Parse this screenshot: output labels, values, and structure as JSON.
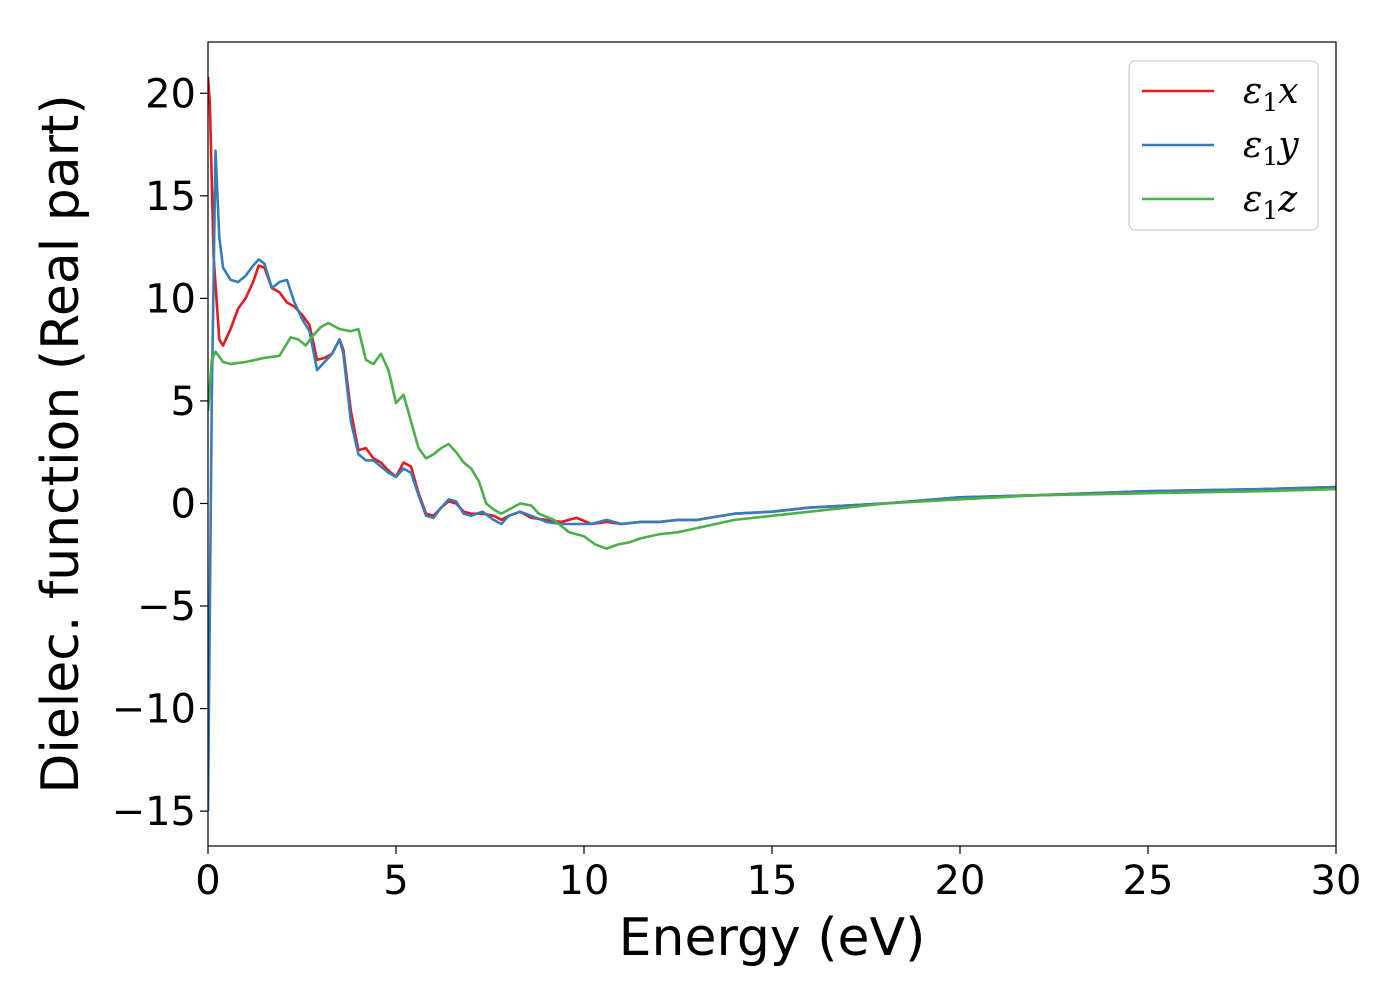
{
  "chart_data": {
    "type": "line",
    "title": "",
    "xlabel": "Energy (eV)",
    "ylabel": "Dielec. function (Real part)",
    "xlim": [
      0,
      30
    ],
    "ylim": [
      -16.7,
      22.5
    ],
    "xticks": [
      0,
      5,
      10,
      15,
      20,
      25,
      30
    ],
    "xtick_labels": [
      "0",
      "5",
      "10",
      "15",
      "20",
      "25",
      "30"
    ],
    "yticks": [
      -15,
      -10,
      -5,
      0,
      5,
      10,
      15,
      20
    ],
    "ytick_labels": [
      "−15",
      "−10",
      "−5",
      "0",
      "5",
      "10",
      "15",
      "20"
    ],
    "grid": false,
    "legend_position": "top-right",
    "series": [
      {
        "name": "ε₁x",
        "legend_main": "ε",
        "legend_sub": "1",
        "legend_tail": "x",
        "color": "#e41a1c",
        "points": [
          [
            0,
            20.8
          ],
          [
            0.05,
            19.5
          ],
          [
            0.15,
            12.0
          ],
          [
            0.3,
            8.0
          ],
          [
            0.4,
            7.7
          ],
          [
            0.6,
            8.5
          ],
          [
            0.8,
            9.5
          ],
          [
            1.0,
            10.0
          ],
          [
            1.2,
            10.8
          ],
          [
            1.35,
            11.6
          ],
          [
            1.5,
            11.5
          ],
          [
            1.7,
            10.5
          ],
          [
            1.9,
            10.3
          ],
          [
            2.1,
            9.8
          ],
          [
            2.3,
            9.6
          ],
          [
            2.5,
            9.2
          ],
          [
            2.7,
            8.7
          ],
          [
            2.9,
            7.0
          ],
          [
            3.1,
            7.1
          ],
          [
            3.3,
            7.3
          ],
          [
            3.5,
            8.0
          ],
          [
            3.6,
            7.5
          ],
          [
            3.8,
            4.5
          ],
          [
            4.0,
            2.6
          ],
          [
            4.2,
            2.7
          ],
          [
            4.4,
            2.2
          ],
          [
            4.6,
            2.0
          ],
          [
            4.8,
            1.6
          ],
          [
            5.0,
            1.3
          ],
          [
            5.2,
            2.0
          ],
          [
            5.4,
            1.8
          ],
          [
            5.6,
            0.5
          ],
          [
            5.8,
            -0.5
          ],
          [
            6.0,
            -0.6
          ],
          [
            6.2,
            -0.2
          ],
          [
            6.4,
            0.1
          ],
          [
            6.6,
            0.0
          ],
          [
            6.8,
            -0.4
          ],
          [
            7.0,
            -0.5
          ],
          [
            7.3,
            -0.5
          ],
          [
            7.6,
            -0.6
          ],
          [
            7.8,
            -0.8
          ],
          [
            8.0,
            -0.6
          ],
          [
            8.3,
            -0.4
          ],
          [
            8.6,
            -0.7
          ],
          [
            9.0,
            -0.8
          ],
          [
            9.4,
            -0.9
          ],
          [
            9.8,
            -0.7
          ],
          [
            10.2,
            -1.0
          ],
          [
            10.6,
            -0.9
          ],
          [
            11.0,
            -1.0
          ],
          [
            11.5,
            -0.9
          ],
          [
            12.0,
            -0.9
          ],
          [
            12.5,
            -0.8
          ],
          [
            13.0,
            -0.8
          ],
          [
            14.0,
            -0.5
          ],
          [
            15.0,
            -0.4
          ],
          [
            16.0,
            -0.2
          ],
          [
            17.0,
            -0.1
          ],
          [
            18.0,
            0.0
          ],
          [
            20.0,
            0.3
          ],
          [
            22.0,
            0.4
          ],
          [
            25.0,
            0.6
          ],
          [
            28.0,
            0.7
          ],
          [
            30.0,
            0.8
          ]
        ]
      },
      {
        "name": "ε₁y",
        "legend_main": "ε",
        "legend_sub": "1",
        "legend_tail": "y",
        "color": "#377eb8",
        "points": [
          [
            0,
            -15.0
          ],
          [
            0.1,
            5.0
          ],
          [
            0.2,
            17.2
          ],
          [
            0.3,
            13.0
          ],
          [
            0.4,
            11.5
          ],
          [
            0.6,
            10.9
          ],
          [
            0.8,
            10.8
          ],
          [
            1.0,
            11.1
          ],
          [
            1.2,
            11.6
          ],
          [
            1.35,
            11.9
          ],
          [
            1.5,
            11.7
          ],
          [
            1.7,
            10.5
          ],
          [
            1.9,
            10.8
          ],
          [
            2.1,
            10.9
          ],
          [
            2.3,
            9.8
          ],
          [
            2.5,
            9.0
          ],
          [
            2.7,
            8.4
          ],
          [
            2.9,
            6.5
          ],
          [
            3.1,
            6.9
          ],
          [
            3.3,
            7.3
          ],
          [
            3.5,
            8.0
          ],
          [
            3.6,
            7.3
          ],
          [
            3.8,
            4.0
          ],
          [
            4.0,
            2.4
          ],
          [
            4.2,
            2.1
          ],
          [
            4.4,
            2.1
          ],
          [
            4.6,
            1.8
          ],
          [
            4.8,
            1.5
          ],
          [
            5.0,
            1.3
          ],
          [
            5.2,
            1.7
          ],
          [
            5.4,
            1.5
          ],
          [
            5.6,
            0.4
          ],
          [
            5.8,
            -0.6
          ],
          [
            6.0,
            -0.7
          ],
          [
            6.2,
            -0.2
          ],
          [
            6.4,
            0.2
          ],
          [
            6.6,
            0.1
          ],
          [
            6.8,
            -0.5
          ],
          [
            7.0,
            -0.6
          ],
          [
            7.3,
            -0.4
          ],
          [
            7.6,
            -0.8
          ],
          [
            7.8,
            -1.0
          ],
          [
            8.0,
            -0.6
          ],
          [
            8.3,
            -0.4
          ],
          [
            8.6,
            -0.6
          ],
          [
            9.0,
            -0.9
          ],
          [
            9.4,
            -1.0
          ],
          [
            9.8,
            -1.0
          ],
          [
            10.2,
            -1.0
          ],
          [
            10.6,
            -0.8
          ],
          [
            11.0,
            -1.0
          ],
          [
            11.5,
            -0.9
          ],
          [
            12.0,
            -0.9
          ],
          [
            12.5,
            -0.8
          ],
          [
            13.0,
            -0.8
          ],
          [
            14.0,
            -0.5
          ],
          [
            15.0,
            -0.4
          ],
          [
            16.0,
            -0.2
          ],
          [
            17.0,
            -0.1
          ],
          [
            18.0,
            0.0
          ],
          [
            20.0,
            0.3
          ],
          [
            22.0,
            0.4
          ],
          [
            25.0,
            0.6
          ],
          [
            28.0,
            0.7
          ],
          [
            30.0,
            0.8
          ]
        ]
      },
      {
        "name": "ε₁z",
        "legend_main": "ε",
        "legend_sub": "1",
        "legend_tail": "z",
        "color": "#4daf4a",
        "points": [
          [
            0,
            4.5
          ],
          [
            0.1,
            7.0
          ],
          [
            0.2,
            7.4
          ],
          [
            0.4,
            6.9
          ],
          [
            0.6,
            6.8
          ],
          [
            1.0,
            6.9
          ],
          [
            1.5,
            7.1
          ],
          [
            1.9,
            7.2
          ],
          [
            2.2,
            8.1
          ],
          [
            2.4,
            8.0
          ],
          [
            2.6,
            7.7
          ],
          [
            2.8,
            8.2
          ],
          [
            3.0,
            8.6
          ],
          [
            3.2,
            8.8
          ],
          [
            3.5,
            8.5
          ],
          [
            3.8,
            8.4
          ],
          [
            4.0,
            8.5
          ],
          [
            4.2,
            7.0
          ],
          [
            4.4,
            6.8
          ],
          [
            4.6,
            7.3
          ],
          [
            4.8,
            6.5
          ],
          [
            5.0,
            4.9
          ],
          [
            5.2,
            5.3
          ],
          [
            5.4,
            4.0
          ],
          [
            5.6,
            2.7
          ],
          [
            5.8,
            2.2
          ],
          [
            6.0,
            2.4
          ],
          [
            6.2,
            2.7
          ],
          [
            6.4,
            2.9
          ],
          [
            6.6,
            2.5
          ],
          [
            6.8,
            2.0
          ],
          [
            7.0,
            1.7
          ],
          [
            7.2,
            1.1
          ],
          [
            7.4,
            0.0
          ],
          [
            7.6,
            -0.3
          ],
          [
            7.8,
            -0.5
          ],
          [
            8.0,
            -0.3
          ],
          [
            8.3,
            0.0
          ],
          [
            8.6,
            -0.1
          ],
          [
            8.8,
            -0.5
          ],
          [
            9.2,
            -0.8
          ],
          [
            9.6,
            -1.4
          ],
          [
            10.0,
            -1.6
          ],
          [
            10.3,
            -2.0
          ],
          [
            10.6,
            -2.2
          ],
          [
            10.9,
            -2.0
          ],
          [
            11.2,
            -1.9
          ],
          [
            11.5,
            -1.7
          ],
          [
            12.0,
            -1.5
          ],
          [
            12.5,
            -1.4
          ],
          [
            13.0,
            -1.2
          ],
          [
            14.0,
            -0.8
          ],
          [
            15.0,
            -0.6
          ],
          [
            16.0,
            -0.4
          ],
          [
            17.0,
            -0.2
          ],
          [
            18.0,
            0.0
          ],
          [
            20.0,
            0.2
          ],
          [
            22.0,
            0.4
          ],
          [
            25.0,
            0.5
          ],
          [
            28.0,
            0.6
          ],
          [
            30.0,
            0.7
          ]
        ]
      }
    ]
  }
}
